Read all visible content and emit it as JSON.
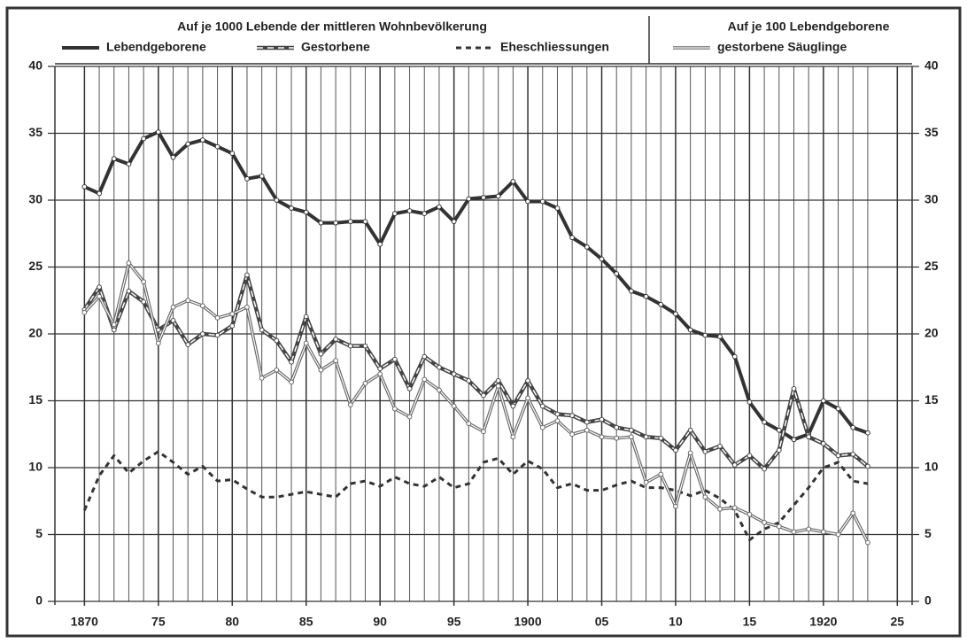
{
  "chart_data": {
    "type": "line",
    "header_left": "Auf je 1000 Lebende der mittleren Wohnbevölkerung",
    "header_right": "Auf je 100 Lebendgeborene",
    "x": [
      1870,
      1871,
      1872,
      1873,
      1874,
      1875,
      1876,
      1877,
      1878,
      1879,
      1880,
      1881,
      1882,
      1883,
      1884,
      1885,
      1886,
      1887,
      1888,
      1889,
      1890,
      1891,
      1892,
      1893,
      1894,
      1895,
      1896,
      1897,
      1898,
      1899,
      1900,
      1901,
      1902,
      1903,
      1904,
      1905,
      1906,
      1907,
      1908,
      1909,
      1910,
      1911,
      1912,
      1913,
      1914,
      1915,
      1916,
      1917,
      1918,
      1919,
      1920,
      1921,
      1922,
      1923
    ],
    "series": [
      {
        "name": "Lebendgeborene",
        "color": "#333333",
        "style": "thick",
        "values": [
          31.0,
          30.5,
          33.1,
          32.7,
          34.6,
          35.1,
          33.2,
          34.2,
          34.5,
          34.0,
          33.5,
          31.6,
          31.8,
          30.0,
          29.4,
          29.1,
          28.3,
          28.3,
          28.4,
          28.4,
          26.7,
          29.0,
          29.2,
          29.0,
          29.5,
          28.4,
          30.1,
          30.2,
          30.3,
          31.4,
          29.9,
          29.9,
          29.4,
          27.2,
          26.5,
          25.6,
          24.5,
          23.2,
          22.8,
          22.2,
          21.5,
          20.3,
          19.9,
          19.8,
          18.3,
          14.9,
          13.4,
          12.8,
          12.1,
          12.5,
          15.0,
          14.4,
          13.0,
          12.6
        ]
      },
      {
        "name": "Gestorbene",
        "color": "#444444",
        "style": "double-dashed",
        "values": [
          21.8,
          23.5,
          20.3,
          23.2,
          22.4,
          20.3,
          21.0,
          19.2,
          20.0,
          19.9,
          20.6,
          24.4,
          20.3,
          19.5,
          17.9,
          21.3,
          18.5,
          19.6,
          19.1,
          19.1,
          17.4,
          18.1,
          15.9,
          18.3,
          17.5,
          17.0,
          16.5,
          15.4,
          16.5,
          14.6,
          16.5,
          14.6,
          14.0,
          13.9,
          13.4,
          13.6,
          13.0,
          12.8,
          12.3,
          12.2,
          11.3,
          12.8,
          11.2,
          11.6,
          10.2,
          10.9,
          9.9,
          11.3,
          15.9,
          12.3,
          11.8,
          10.9,
          11.0,
          10.1
        ]
      },
      {
        "name": "Eheschliessungen",
        "color": "#333333",
        "style": "dashed",
        "values": [
          6.8,
          9.4,
          10.9,
          9.6,
          10.5,
          11.2,
          10.4,
          9.5,
          10.1,
          9.0,
          9.1,
          8.4,
          7.8,
          7.8,
          8.0,
          8.2,
          8.0,
          7.8,
          8.8,
          9.0,
          8.6,
          9.3,
          8.8,
          8.6,
          9.3,
          8.5,
          8.8,
          10.4,
          10.7,
          9.5,
          10.5,
          9.9,
          8.5,
          8.8,
          8.3,
          8.3,
          8.7,
          9.0,
          8.5,
          8.5,
          8.3,
          7.9,
          8.3,
          7.7,
          6.8,
          4.6,
          5.4,
          5.9,
          7.2,
          8.5,
          10.0,
          10.4,
          9.0,
          8.8
        ]
      },
      {
        "name": "gestorbene Säuglinge",
        "color": "#666666",
        "style": "double",
        "values": [
          21.6,
          22.8,
          20.7,
          25.3,
          23.9,
          19.3,
          22.0,
          22.5,
          22.1,
          21.2,
          21.5,
          22.0,
          16.7,
          17.3,
          16.4,
          19.3,
          17.3,
          18.0,
          14.7,
          16.3,
          17.0,
          14.4,
          13.8,
          16.6,
          15.8,
          14.6,
          13.3,
          12.7,
          16.1,
          12.3,
          15.2,
          13.0,
          13.5,
          12.5,
          12.8,
          12.3,
          12.2,
          12.3,
          8.9,
          9.5,
          7.1,
          11.1,
          7.8,
          6.9,
          7.0,
          6.5,
          5.9,
          5.6,
          5.2,
          5.4,
          5.2,
          5.0,
          6.6,
          4.4
        ]
      }
    ],
    "xlim": [
      1868,
      1926
    ],
    "xticks": [
      1870,
      {
        "value": 1875,
        "label": "75"
      },
      {
        "value": 1880,
        "label": "80"
      },
      {
        "value": 1885,
        "label": "85"
      },
      {
        "value": 1890,
        "label": "90"
      },
      {
        "value": 1895,
        "label": "95"
      },
      1900,
      {
        "value": 1905,
        "label": "05"
      },
      {
        "value": 1910,
        "label": "10"
      },
      {
        "value": 1915,
        "label": "15"
      },
      1920,
      {
        "value": 1925,
        "label": "25"
      }
    ],
    "ylim": [
      0,
      40
    ],
    "yticks": [
      0,
      5,
      10,
      15,
      20,
      25,
      30,
      35,
      40
    ],
    "grid": true
  }
}
